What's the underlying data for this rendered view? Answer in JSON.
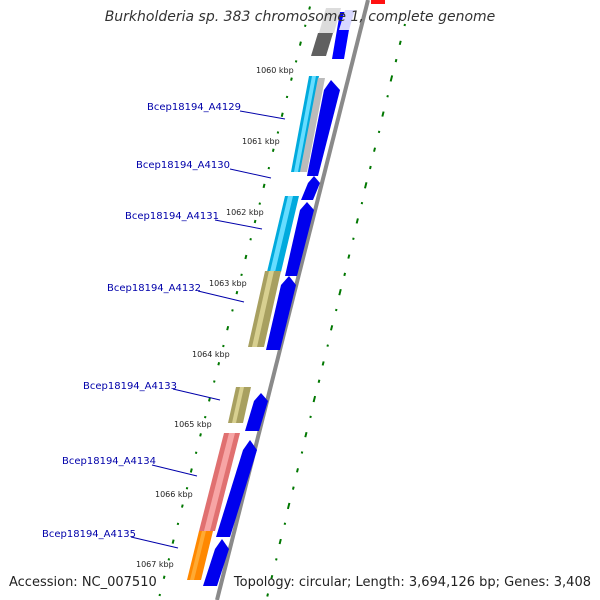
{
  "title": "Burkholderia sp. 383 chromosome 1, complete genome",
  "accession": "Accession: NC_007510",
  "summary": "Topology: circular; Length: 3,694,126 bp; Genes: 3,408",
  "colors": {
    "backbone": "#888888",
    "cds": "#0000ff",
    "gc_skew": "#007700",
    "label": "#0000aa"
  },
  "kbp_ticks": [
    "1060 kbp",
    "1061 kbp",
    "1062 kbp",
    "1063 kbp",
    "1064 kbp",
    "1065 kbp",
    "1066 kbp",
    "1067 kbp"
  ],
  "gene_labels": [
    "Bcep18194_A4129",
    "Bcep18194_A4130",
    "Bcep18194_A4131",
    "Bcep18194_A4132",
    "Bcep18194_A4133",
    "Bcep18194_A4134",
    "Bcep18194_A4135"
  ]
}
